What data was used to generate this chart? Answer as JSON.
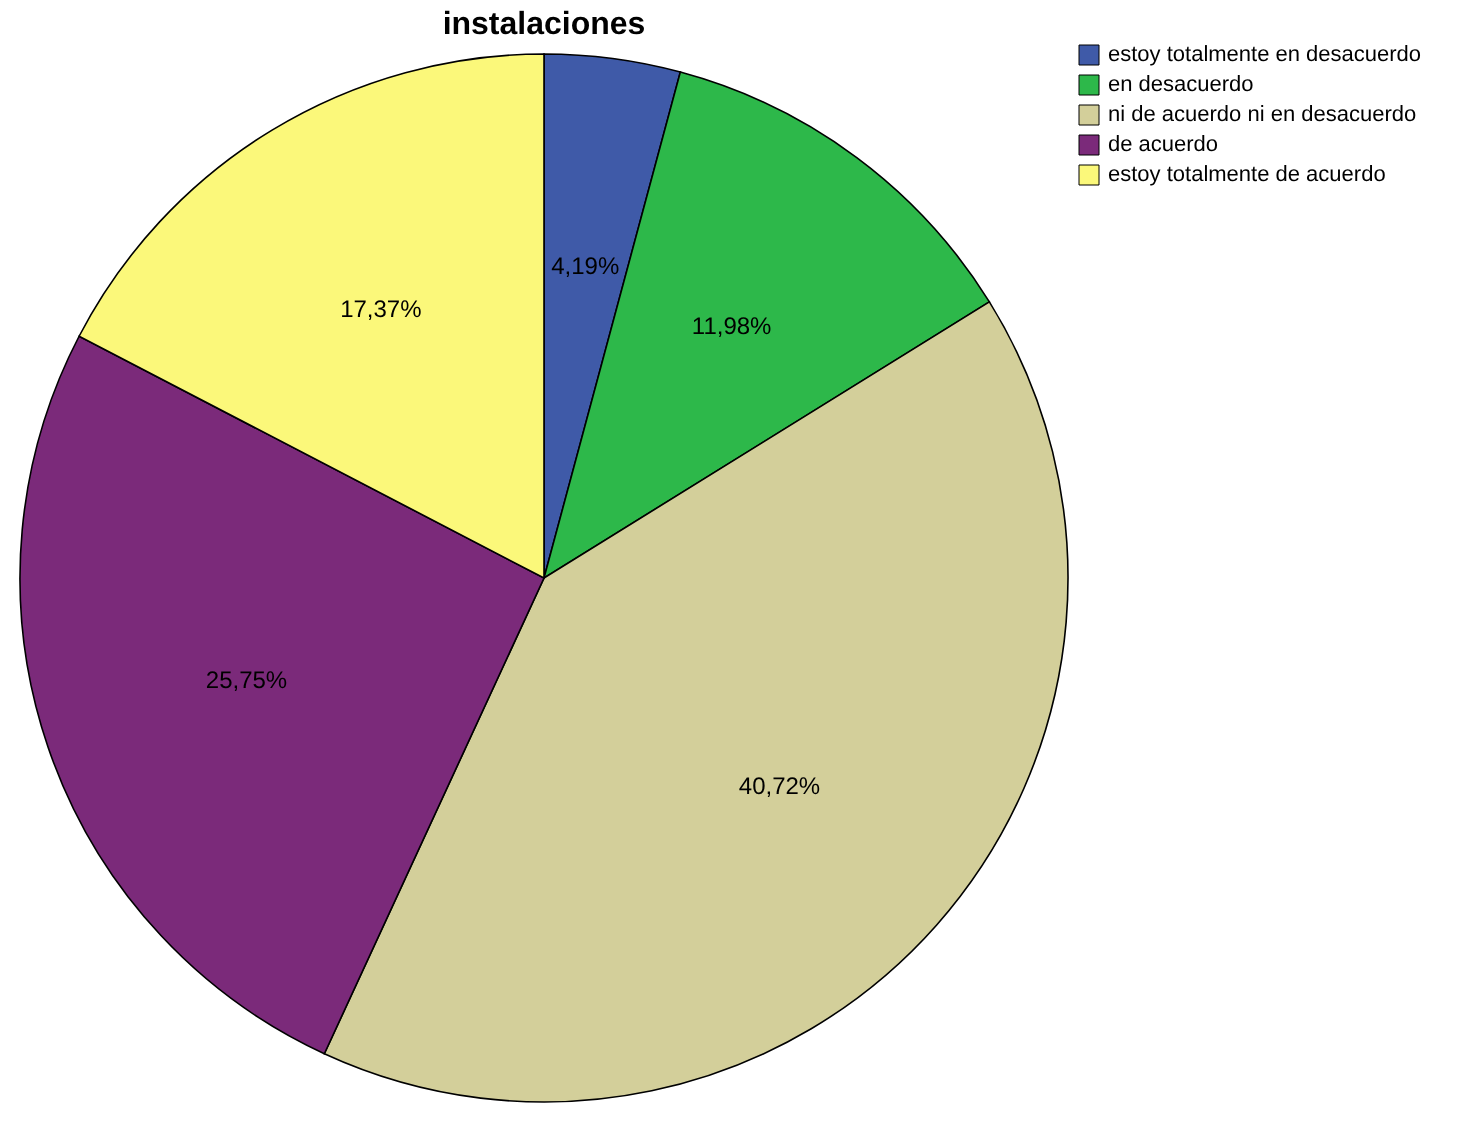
{
  "chart_data": {
    "type": "pie",
    "title": "instalaciones",
    "categories": [
      "estoy totalmente en desacuerdo",
      "en desacuerdo",
      "ni de acuerdo ni en desacuerdo",
      "de acuerdo",
      "estoy totalmente de acuerdo"
    ],
    "values": [
      4.19,
      11.98,
      40.72,
      25.75,
      17.37
    ],
    "value_labels": [
      "4,19%",
      "11,98%",
      "40,72%",
      "25,75%",
      "17,37%"
    ],
    "colors": [
      "#3f5aa8",
      "#2db84a",
      "#d3cf9a",
      "#7b2a7a",
      "#fbf87a"
    ],
    "legend": "top right"
  }
}
